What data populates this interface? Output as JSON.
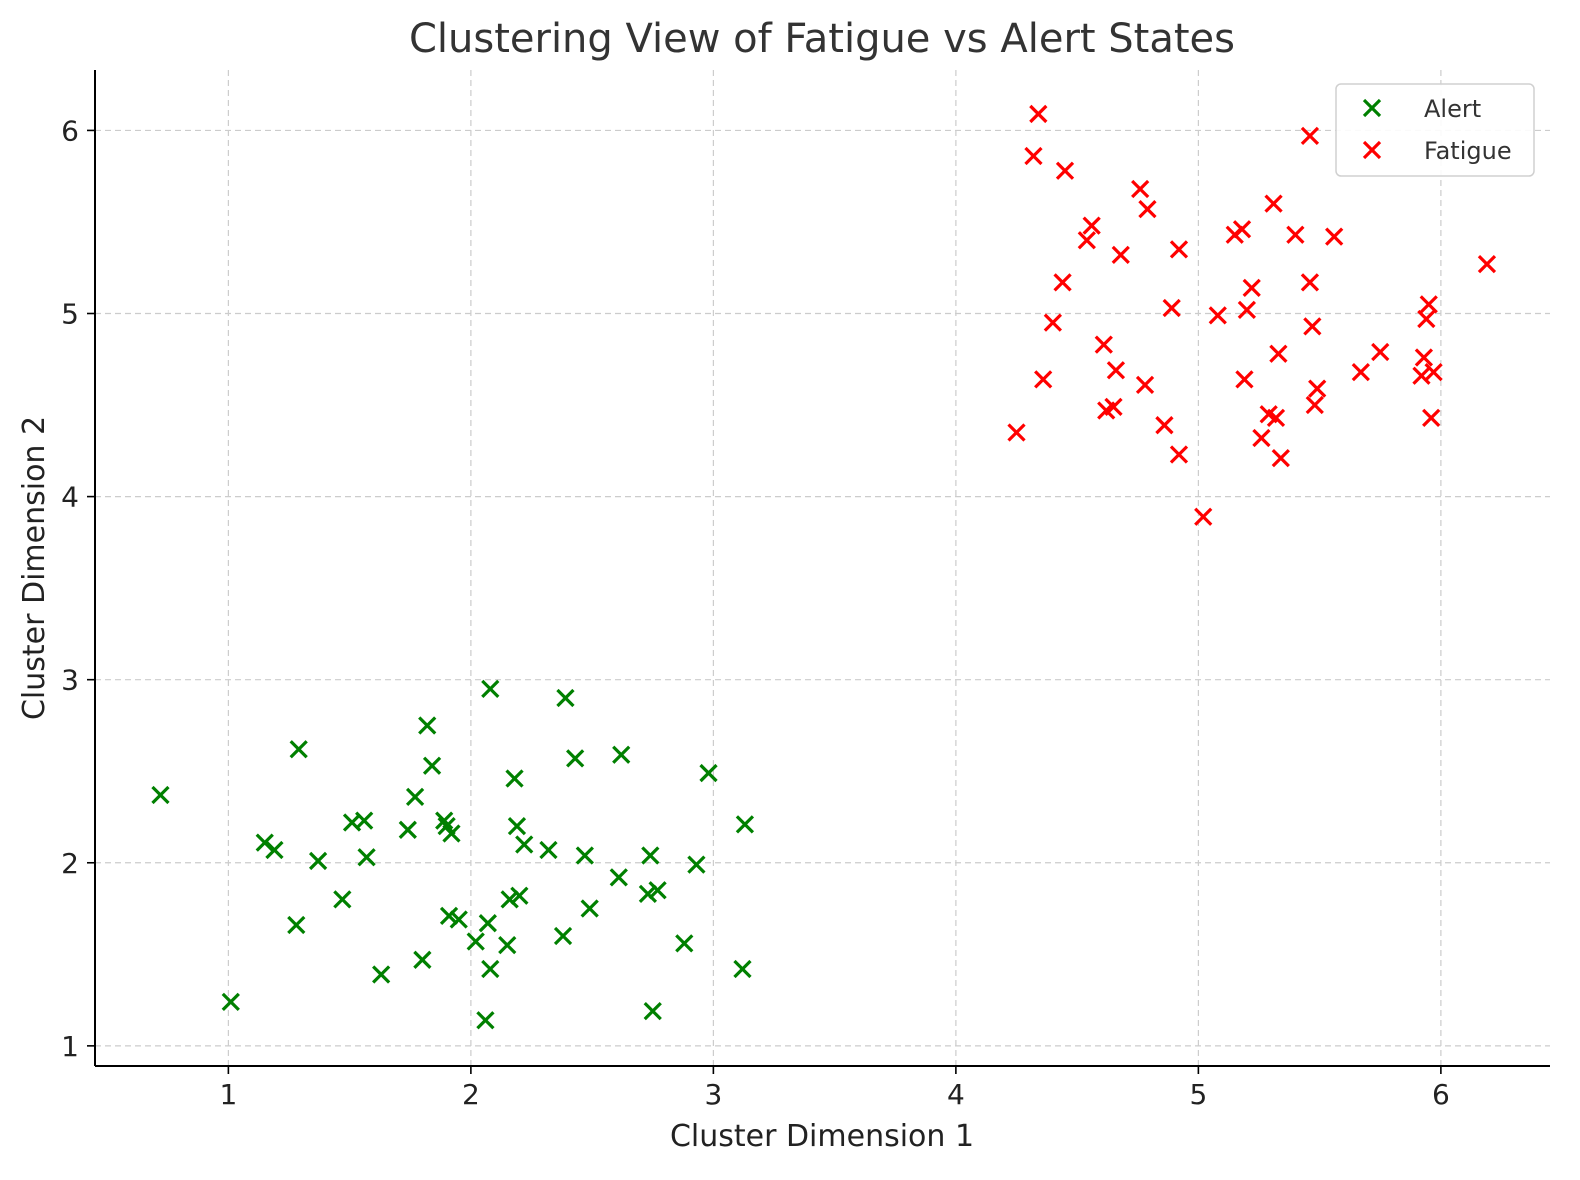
{
  "chart_data": {
    "type": "scatter",
    "title": "Clustering View of Fatigue vs Alert States",
    "xlabel": "Cluster Dimension 1",
    "ylabel": "Cluster Dimension 2",
    "xlim": [
      0.45,
      6.45
    ],
    "ylim": [
      0.89,
      6.33
    ],
    "xticks": [
      1,
      2,
      3,
      4,
      5,
      6
    ],
    "yticks": [
      1,
      2,
      3,
      4,
      5,
      6
    ],
    "grid": true,
    "legend_position": "top-right",
    "marker": "x",
    "series": [
      {
        "name": "Alert",
        "color": "#008000",
        "points": [
          [
            0.72,
            2.37
          ],
          [
            1.01,
            1.24
          ],
          [
            1.15,
            2.11
          ],
          [
            1.19,
            2.07
          ],
          [
            1.28,
            1.66
          ],
          [
            1.29,
            2.62
          ],
          [
            1.37,
            2.01
          ],
          [
            1.47,
            1.8
          ],
          [
            1.51,
            2.22
          ],
          [
            1.56,
            2.23
          ],
          [
            1.57,
            2.03
          ],
          [
            1.63,
            1.39
          ],
          [
            1.74,
            2.18
          ],
          [
            1.77,
            2.36
          ],
          [
            1.8,
            1.47
          ],
          [
            1.82,
            2.75
          ],
          [
            1.84,
            2.53
          ],
          [
            1.89,
            2.23
          ],
          [
            1.9,
            2.2
          ],
          [
            1.91,
            1.71
          ],
          [
            1.92,
            2.16
          ],
          [
            1.95,
            1.69
          ],
          [
            2.02,
            1.57
          ],
          [
            2.06,
            1.14
          ],
          [
            2.07,
            1.67
          ],
          [
            2.08,
            1.42
          ],
          [
            2.08,
            2.95
          ],
          [
            2.15,
            1.55
          ],
          [
            2.16,
            1.8
          ],
          [
            2.18,
            2.46
          ],
          [
            2.19,
            2.2
          ],
          [
            2.2,
            1.82
          ],
          [
            2.22,
            2.1
          ],
          [
            2.32,
            2.07
          ],
          [
            2.38,
            1.6
          ],
          [
            2.39,
            2.9
          ],
          [
            2.43,
            2.57
          ],
          [
            2.47,
            2.04
          ],
          [
            2.49,
            1.75
          ],
          [
            2.61,
            1.92
          ],
          [
            2.62,
            2.59
          ],
          [
            2.73,
            1.83
          ],
          [
            2.74,
            2.04
          ],
          [
            2.75,
            1.19
          ],
          [
            2.77,
            1.85
          ],
          [
            2.88,
            1.56
          ],
          [
            2.93,
            1.99
          ],
          [
            2.98,
            2.49
          ],
          [
            3.12,
            1.42
          ],
          [
            3.13,
            2.21
          ]
        ]
      },
      {
        "name": "Fatigue",
        "color": "#ff0000",
        "points": [
          [
            4.25,
            4.35
          ],
          [
            4.32,
            5.86
          ],
          [
            4.34,
            6.09
          ],
          [
            4.36,
            4.64
          ],
          [
            4.4,
            4.95
          ],
          [
            4.44,
            5.17
          ],
          [
            4.45,
            5.78
          ],
          [
            4.54,
            5.4
          ],
          [
            4.56,
            5.48
          ],
          [
            4.61,
            4.83
          ],
          [
            4.62,
            4.47
          ],
          [
            4.65,
            4.49
          ],
          [
            4.66,
            4.69
          ],
          [
            4.68,
            5.32
          ],
          [
            4.76,
            5.68
          ],
          [
            4.78,
            4.61
          ],
          [
            4.79,
            5.57
          ],
          [
            4.86,
            4.39
          ],
          [
            4.89,
            5.03
          ],
          [
            4.92,
            4.23
          ],
          [
            4.92,
            5.35
          ],
          [
            5.02,
            3.89
          ],
          [
            5.08,
            4.99
          ],
          [
            5.15,
            5.43
          ],
          [
            5.18,
            5.46
          ],
          [
            5.19,
            4.64
          ],
          [
            5.2,
            5.02
          ],
          [
            5.22,
            5.14
          ],
          [
            5.26,
            4.32
          ],
          [
            5.29,
            4.45
          ],
          [
            5.31,
            5.6
          ],
          [
            5.32,
            4.43
          ],
          [
            5.33,
            4.78
          ],
          [
            5.34,
            4.21
          ],
          [
            5.4,
            5.43
          ],
          [
            5.46,
            5.97
          ],
          [
            5.46,
            5.17
          ],
          [
            5.47,
            4.93
          ],
          [
            5.48,
            4.5
          ],
          [
            5.49,
            4.59
          ],
          [
            5.56,
            5.42
          ],
          [
            5.67,
            4.68
          ],
          [
            5.75,
            4.79
          ],
          [
            5.92,
            4.66
          ],
          [
            5.93,
            4.76
          ],
          [
            5.94,
            4.97
          ],
          [
            5.95,
            5.05
          ],
          [
            5.96,
            4.43
          ],
          [
            5.97,
            4.68
          ],
          [
            6.19,
            5.27
          ]
        ]
      }
    ]
  }
}
